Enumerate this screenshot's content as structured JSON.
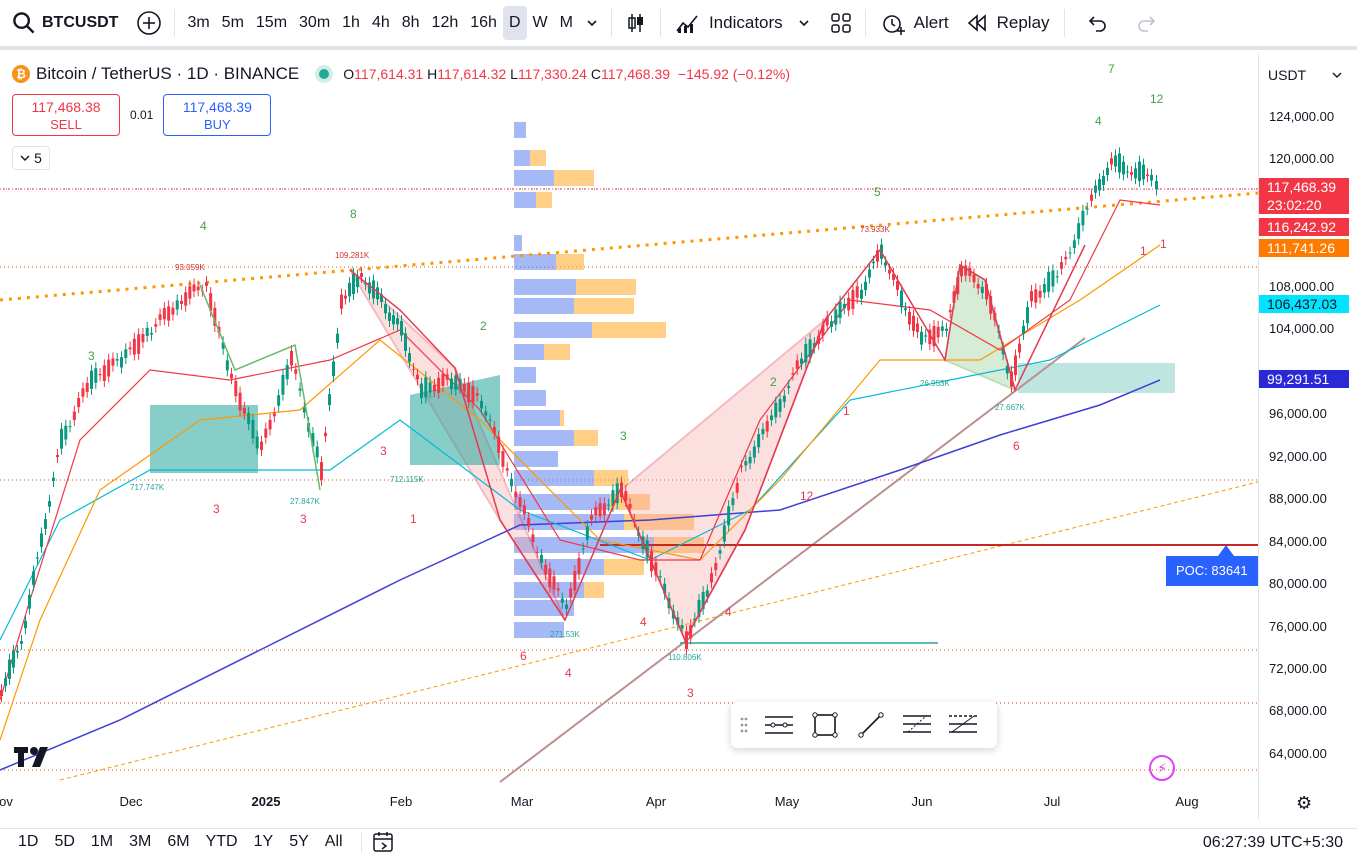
{
  "toolbar": {
    "symbol": "BTCUSDT",
    "timeframes": [
      "3m",
      "5m",
      "15m",
      "30m",
      "1h",
      "4h",
      "8h",
      "12h",
      "16h",
      "D",
      "W",
      "M"
    ],
    "active_timeframe": "D",
    "indicators_label": "Indicators",
    "alert_label": "Alert",
    "replay_label": "Replay"
  },
  "legend": {
    "title": "Bitcoin / TetherUS · 1D · BINANCE",
    "o_label": "O",
    "o": "117,614.31",
    "h_label": "H",
    "h": "117,614.32",
    "l_label": "L",
    "l": "117,330.24",
    "c_label": "C",
    "c": "117,468.39",
    "change": "−145.92 (−0.12%)"
  },
  "trade": {
    "sell_price": "117,468.38",
    "sell_label": "SELL",
    "spread": "0.01",
    "buy_price": "117,468.39",
    "buy_label": "BUY"
  },
  "indicator_toggle": "5",
  "price_scale": {
    "currency": "USDT",
    "labels": [
      "124,000.00",
      "120,000.00",
      "108,000.00",
      "104,000.00",
      "96,000.00",
      "92,000.00",
      "88,000.00",
      "84,000.00",
      "80,000.00",
      "76,000.00",
      "72,000.00",
      "68,000.00",
      "64,000.00"
    ],
    "tags": [
      {
        "text": "117,468.39",
        "sub": "23:02:20",
        "color": "#f23645"
      },
      {
        "text": "116,242.92",
        "color": "#f23645"
      },
      {
        "text": "111,741.26",
        "color": "#ff7b00"
      },
      {
        "text": "106,437.03",
        "color": "#00e5ff"
      },
      {
        "text": "99,291.51",
        "color": "#2929d8"
      }
    ]
  },
  "poc_label": "POC: 83641",
  "time_axis": {
    "labels": [
      {
        "text": "ov",
        "bold": false
      },
      {
        "text": "Dec",
        "bold": false
      },
      {
        "text": "2025",
        "bold": true
      },
      {
        "text": "Feb",
        "bold": false
      },
      {
        "text": "Mar",
        "bold": false
      },
      {
        "text": "Apr",
        "bold": false
      },
      {
        "text": "May",
        "bold": false
      },
      {
        "text": "Jun",
        "bold": false
      },
      {
        "text": "Jul",
        "bold": false
      },
      {
        "text": "Aug",
        "bold": false
      }
    ]
  },
  "chart_annotations": [
    "717.747K",
    "712.115K",
    "27.847K",
    "271.53K",
    "110.806K",
    "26.953K",
    "27.667K",
    "93.059K",
    "109.281K",
    "73.933K"
  ],
  "bottom": {
    "ranges": [
      "1D",
      "5D",
      "1M",
      "3M",
      "6M",
      "YTD",
      "1Y",
      "5Y",
      "All"
    ],
    "clock": "06:27:39 UTC+5:30"
  },
  "chart_data": {
    "type": "candlestick",
    "x": [
      "Nov 2024",
      "Dec 2024",
      "Jan 2025",
      "Feb 2025",
      "Mar 2025",
      "Apr 2025",
      "May 2025",
      "Jun 2025",
      "Jul 2025",
      "Aug 2025"
    ],
    "close": [
      70000,
      97000,
      94000,
      102000,
      84000,
      83000,
      96000,
      105000,
      107000,
      117468.39
    ],
    "ylim": [
      62000,
      128000
    ],
    "last_price": 117468.39,
    "poc": 83641
  }
}
